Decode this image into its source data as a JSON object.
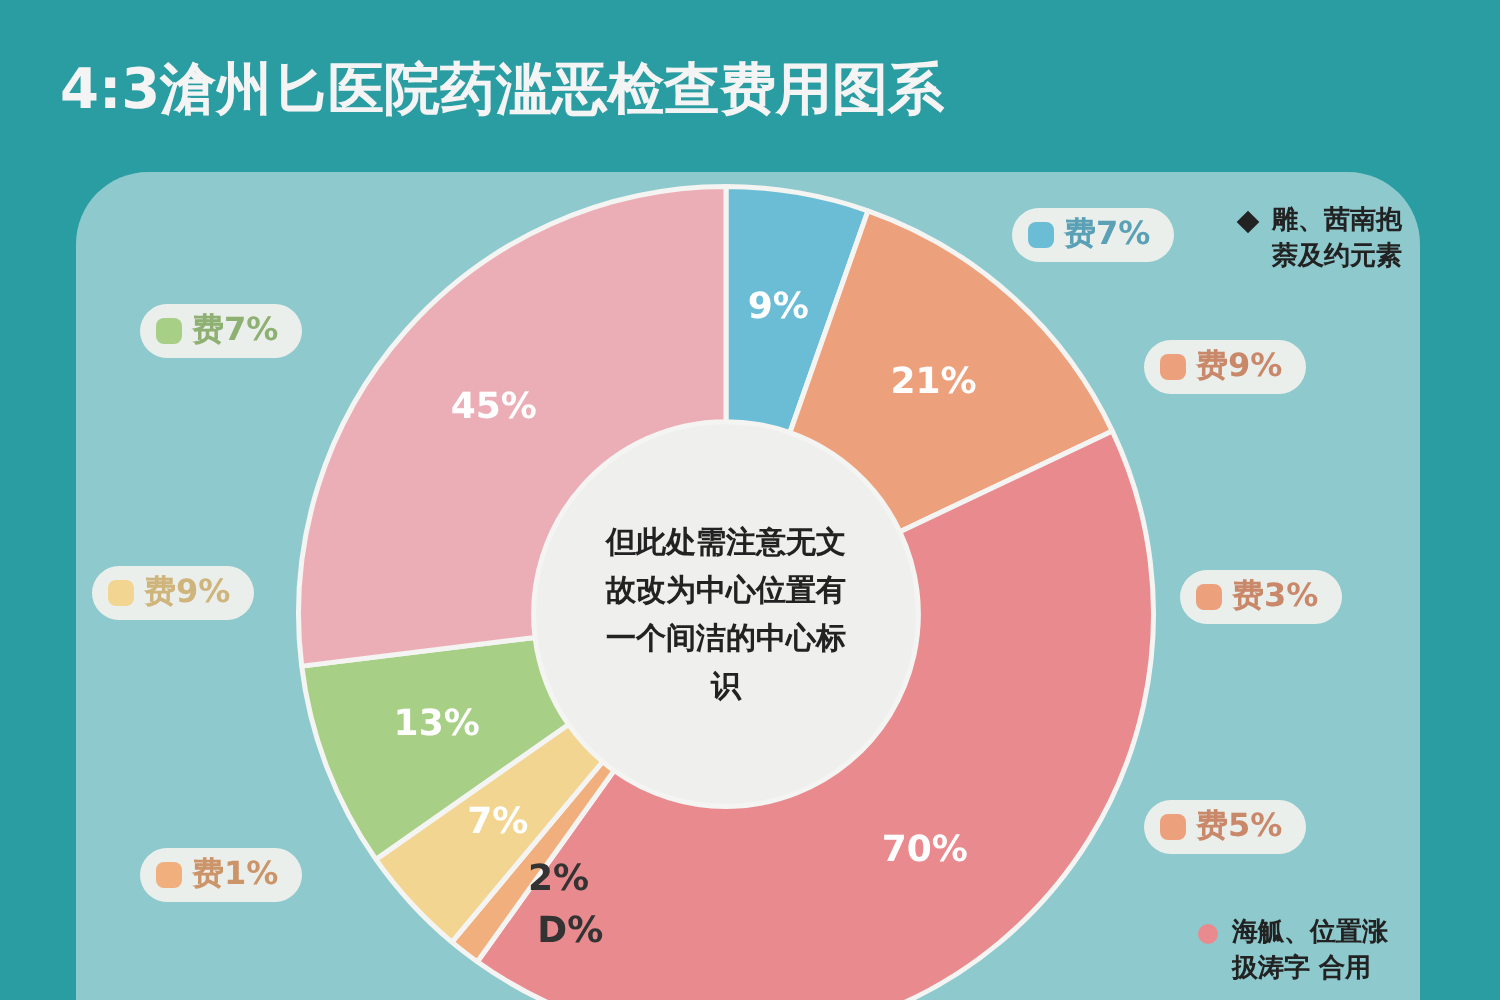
{
  "chart_data": {
    "type": "donut",
    "title": "4:3滄州匕医院药滥恶检查费用图系",
    "categories": [
      null,
      null,
      null,
      null,
      null,
      null,
      null,
      null
    ],
    "values": [
      9,
      21,
      70,
      0,
      2,
      7,
      13,
      45
    ],
    "colors": [
      "#6bbdd6",
      "#eda07c",
      "#e98a8e",
      "#a59fdb",
      "#f0af7c",
      "#f3d592",
      "#a7cf86",
      "#ecaeb6"
    ],
    "value_labels": [
      "9%",
      "21%",
      "70%",
      "D%",
      "2%",
      "7%",
      "13%",
      "45%"
    ],
    "legend": false,
    "annotations": [
      "但此处需注意无文故改为中心位置有一个间洁的中心标识",
      "费7%",
      "费9%",
      "费3%",
      "费5%",
      "费1%",
      "费9%",
      "费7%",
      "雕、茜南抱萘及约元素",
      "海觚、位置涨扱涛字 合用"
    ]
  }
}
